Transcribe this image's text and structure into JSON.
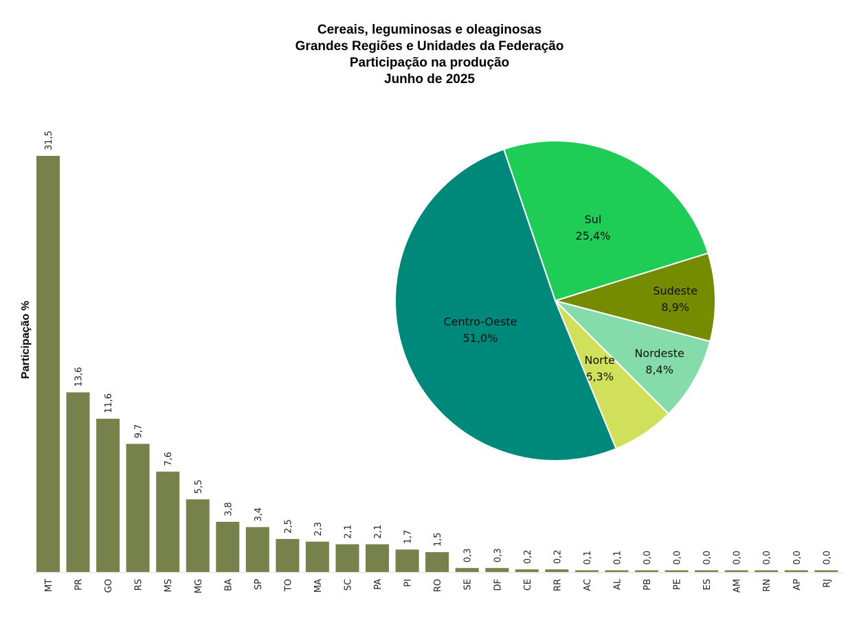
{
  "chart_data": [
    {
      "type": "bar",
      "title": [
        "Cereais, leguminosas e oleaginosas",
        "Grandes Regiões e Unidades da Federação",
        "Participação na produção",
        "Junho de 2025"
      ],
      "ylabel": "Participação %",
      "xlabel": "",
      "ylim": [
        0,
        31.5
      ],
      "grid": false,
      "bar_color": "#76814c",
      "categories": [
        "MT",
        "PR",
        "GO",
        "RS",
        "MS",
        "MG",
        "BA",
        "SP",
        "TO",
        "MA",
        "SC",
        "PA",
        "PI",
        "RO",
        "SE",
        "DF",
        "CE",
        "RR",
        "AC",
        "AL",
        "PB",
        "PE",
        "ES",
        "AM",
        "RN",
        "AP",
        "RJ"
      ],
      "values": [
        31.5,
        13.6,
        11.6,
        9.7,
        7.6,
        5.5,
        3.8,
        3.4,
        2.5,
        2.3,
        2.1,
        2.1,
        1.7,
        1.5,
        0.3,
        0.3,
        0.2,
        0.2,
        0.1,
        0.1,
        0.0,
        0.0,
        0.0,
        0.0,
        0.0,
        0.0,
        0.0
      ],
      "value_labels": [
        "31,5",
        "13,6",
        "11,6",
        "9,7",
        "7,6",
        "5,5",
        "3,8",
        "3,4",
        "2,5",
        "2,3",
        "2,1",
        "2,1",
        "1,7",
        "1,5",
        "0,3",
        "0,3",
        "0,2",
        "0,2",
        "0,1",
        "0,1",
        "0,0",
        "0,0",
        "0,0",
        "0,0",
        "0,0",
        "0,0",
        "0,0"
      ]
    },
    {
      "type": "pie",
      "slices": [
        {
          "name": "Sul",
          "value": 25.4,
          "label": "25,4%",
          "color": "#1fcc55"
        },
        {
          "name": "Sudeste",
          "value": 8.9,
          "label": "8,9%",
          "color": "#758c00"
        },
        {
          "name": "Nordeste",
          "value": 8.4,
          "label": "8,4%",
          "color": "#85dcaa"
        },
        {
          "name": "Norte",
          "value": 6.3,
          "label": "6,3%",
          "color": "#d1e05a"
        },
        {
          "name": "Centro-Oeste",
          "value": 51.0,
          "label": "51,0%",
          "color": "#00897a"
        }
      ]
    }
  ]
}
